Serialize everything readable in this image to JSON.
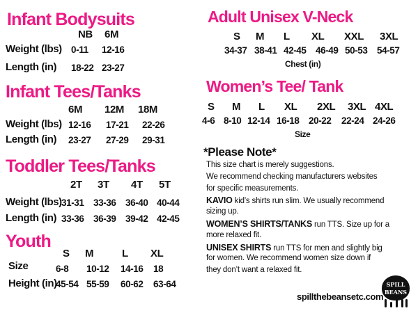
{
  "colors": {
    "heading": "#ec1a85",
    "text": "#111111"
  },
  "infant_bodysuits": {
    "title": "Infant Bodysuits",
    "sizes": [
      "NB",
      "6M"
    ],
    "rows": [
      {
        "label": "Weight (lbs)",
        "values": [
          "0-11",
          "12-16"
        ]
      },
      {
        "label": "Length (in)",
        "values": [
          "18-22",
          "23-27"
        ]
      }
    ]
  },
  "infant_tees": {
    "title": "Infant Tees/Tanks",
    "sizes": [
      "6M",
      "12M",
      "18M"
    ],
    "rows": [
      {
        "label": "Weight (lbs)",
        "values": [
          "12-16",
          "17-21",
          "22-26"
        ]
      },
      {
        "label": "Length (in)",
        "values": [
          "23-27",
          "27-29",
          "29-31"
        ]
      }
    ]
  },
  "toddler_tees": {
    "title": "Toddler  Tees/Tanks",
    "sizes": [
      "2T",
      "3T",
      "4T",
      "5T"
    ],
    "rows": [
      {
        "label": "Weight (lbs)",
        "values": [
          "31-31",
          "33-36",
          "36-40",
          "40-44"
        ]
      },
      {
        "label": "Length (in)",
        "values": [
          "33-36",
          "36-39",
          "39-42",
          "42-45"
        ]
      }
    ]
  },
  "youth": {
    "title": "Youth",
    "sizes": [
      "S",
      "M",
      "L",
      "XL"
    ],
    "rows": [
      {
        "label": "Size",
        "values": [
          "6-8",
          "10-12",
          "14-16",
          "18"
        ]
      },
      {
        "label": "Height (in)",
        "values": [
          "45-54",
          "55-59",
          "60-62",
          "63-64"
        ]
      }
    ]
  },
  "adult_unisex": {
    "title": "Adult Unisex V-Neck",
    "sizes": [
      "S",
      "M",
      "L",
      "XL",
      "XXL",
      "3XL"
    ],
    "values": [
      "34-37",
      "38-41",
      "42-45",
      "46-49",
      "50-53",
      "54-57"
    ],
    "caption": "Chest (in)"
  },
  "womens_tee": {
    "title": "Women’s Tee/ Tank",
    "sizes": [
      "S",
      "M",
      "L",
      "XL",
      "2XL",
      "3XL",
      "4XL"
    ],
    "values": [
      "4-6",
      "8-10",
      "12-14",
      "16-18",
      "20-22",
      "22-24",
      "24-26"
    ],
    "caption": "Size"
  },
  "note": {
    "heading": "*Please Note*",
    "lines": [
      {
        "bold": "",
        "text": "This size chart is merely suggestions."
      },
      {
        "bold": "",
        "text": "We recommend checking manufacturers websites"
      },
      {
        "bold": "",
        "text": "for specific measurements."
      },
      {
        "bold": "KAVIO",
        "text": " kid’s shirts run slim. We usually recommend"
      },
      {
        "bold": "",
        "text": "sizing up."
      },
      {
        "bold": "WOMEN’S SHIRTS/TANKS",
        "text": " run TTS. Size up for a"
      },
      {
        "bold": "",
        "text": "more relaxed fit."
      },
      {
        "bold": "UNISEX SHIRTS",
        "text": " run TTS for men and slightly big"
      },
      {
        "bold": "",
        "text": "for women. We recommend women size down if"
      },
      {
        "bold": "",
        "text": "they don’t want a relaxed fit."
      }
    ]
  },
  "footer": {
    "website": "spillthebeansetc.com",
    "logo_text": "Spill the Beans"
  }
}
